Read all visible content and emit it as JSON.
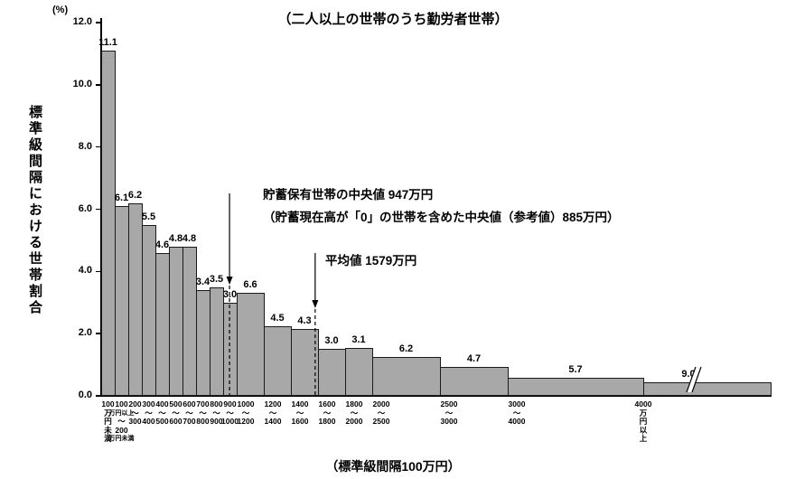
{
  "chart_data": {
    "type": "bar",
    "title": "（二人以上の世帯のうち勤労者世帯）",
    "y_unit_label": "(%)",
    "ylabel": "標準級間隔における世帯割合",
    "xlabel": "（標準級間隔100万円）",
    "ylim": [
      0,
      12.0
    ],
    "yticks": [
      "0.0",
      "2.0",
      "4.0",
      "6.0",
      "8.0",
      "10.0",
      "12.0"
    ],
    "grid": false,
    "legend": null,
    "bar_color": "#a8a8a8",
    "bars": [
      {
        "label": "100万円未満",
        "tick_lines": [
          "100",
          "万",
          "円",
          "未",
          "満"
        ],
        "start": 0,
        "end": 100,
        "value": 11.1,
        "display": 11.1
      },
      {
        "label": "100万円以上～200万円未満",
        "tick_lines": [
          "100",
          "万円以上",
          "～",
          "200",
          "万円未満"
        ],
        "start": 100,
        "end": 200,
        "value": 6.1,
        "display": 6.1
      },
      {
        "label": "200～300",
        "tick_lines": [
          "200",
          "～",
          "300"
        ],
        "start": 200,
        "end": 300,
        "value": 6.2,
        "display": 6.2
      },
      {
        "label": "300～400",
        "tick_lines": [
          "300",
          "～",
          "400"
        ],
        "start": 300,
        "end": 400,
        "value": 5.5,
        "display": 5.5
      },
      {
        "label": "400～500",
        "tick_lines": [
          "400",
          "～",
          "500"
        ],
        "start": 400,
        "end": 500,
        "value": 4.6,
        "display": 4.6
      },
      {
        "label": "500～600",
        "tick_lines": [
          "500",
          "～",
          "600"
        ],
        "start": 500,
        "end": 600,
        "value": 4.8,
        "display": 4.8
      },
      {
        "label": "600～700",
        "tick_lines": [
          "600",
          "～",
          "700"
        ],
        "start": 600,
        "end": 700,
        "value": 4.8,
        "display": 4.8
      },
      {
        "label": "700～800",
        "tick_lines": [
          "700",
          "～",
          "800"
        ],
        "start": 700,
        "end": 800,
        "value": 3.4,
        "display": 3.4
      },
      {
        "label": "800～900",
        "tick_lines": [
          "800",
          "～",
          "900"
        ],
        "start": 800,
        "end": 900,
        "value": 3.5,
        "display": 3.5
      },
      {
        "label": "900～1000",
        "tick_lines": [
          "900",
          "～",
          "1000"
        ],
        "start": 900,
        "end": 1000,
        "value": 3.0,
        "display": 3.0
      },
      {
        "label": "1000～1200",
        "tick_lines": [
          "1000",
          "～",
          "1200"
        ],
        "start": 1000,
        "end": 1200,
        "value": 6.6,
        "display": 3.3
      },
      {
        "label": "1200～1400",
        "tick_lines": [
          "1200",
          "～",
          "1400"
        ],
        "start": 1200,
        "end": 1400,
        "value": 4.5,
        "display": 2.25
      },
      {
        "label": "1400～1600",
        "tick_lines": [
          "1400",
          "～",
          "1600"
        ],
        "start": 1400,
        "end": 1600,
        "value": 4.3,
        "display": 2.15
      },
      {
        "label": "1600～1800",
        "tick_lines": [
          "1600",
          "～",
          "1800"
        ],
        "start": 1600,
        "end": 1800,
        "value": 3.0,
        "display": 1.5
      },
      {
        "label": "1800～2000",
        "tick_lines": [
          "1800",
          "～",
          "2000"
        ],
        "start": 1800,
        "end": 2000,
        "value": 3.1,
        "display": 1.55
      },
      {
        "label": "2000～2500",
        "tick_lines": [
          "2000",
          "～",
          "2500"
        ],
        "start": 2000,
        "end": 2500,
        "value": 6.2,
        "display": 1.24
      },
      {
        "label": "2500～3000",
        "tick_lines": [
          "2500",
          "～",
          "3000"
        ],
        "start": 2500,
        "end": 3000,
        "value": 4.7,
        "display": 0.94
      },
      {
        "label": "3000～4000",
        "tick_lines": [
          "3000",
          "～",
          "4000"
        ],
        "start": 3000,
        "end": 4000,
        "value": 5.7,
        "display": 0.57
      },
      {
        "label": "4000万円以上",
        "tick_lines": [
          "4000",
          "万",
          "円",
          "以",
          "上"
        ],
        "start": 4000,
        "end": null,
        "value": 9.0,
        "display": 0.45,
        "axis_break": true
      }
    ],
    "annotations": {
      "median_line1": "貯蓄保有世帯の中央値 947万円",
      "median_line2": "（貯蓄現在高が「0」の世帯を含めた中央値（参考値）885万円）",
      "median_value": 947,
      "mean_label": "平均値 1579万円",
      "mean_value": 1579
    }
  }
}
